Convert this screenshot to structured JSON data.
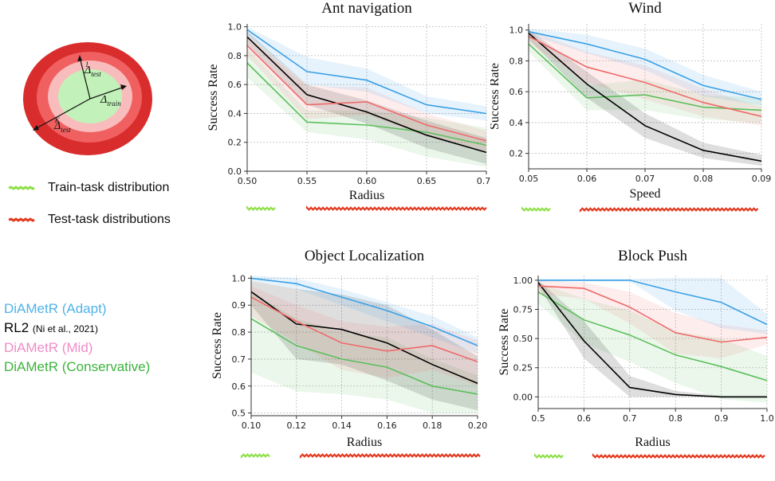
{
  "left_panel": {
    "diagram": {
      "label_train": "Δ",
      "label_train_sub": "train",
      "label_test1": "Δ",
      "label_test1_sub": "test",
      "label_test1_sup": "1",
      "label_testK": "Δ",
      "label_testK_sub": "test",
      "label_testK_sup": "K",
      "colors": {
        "outer": "#d92d2d",
        "ring2": "#f06060",
        "ring3": "#f9bcbc",
        "inner": "#c2f2b9"
      }
    },
    "dist_legend": {
      "train_label": "Train-task distribution",
      "test_label": "Test-task distributions",
      "train_color": "#8fe04a",
      "test_color": "#e23a1f"
    },
    "method_legend": [
      {
        "label": "DiAMetR (Adapt)",
        "note": "",
        "color": "#4fb3e8"
      },
      {
        "label": "RL2",
        "note": "(Ni et al., 2021)",
        "color": "#000000"
      },
      {
        "label": "DiAMetR (Mid)",
        "note": "",
        "color": "#f08cc8"
      },
      {
        "label": "DiAMetR (Conservative)",
        "note": "",
        "color": "#3db33d"
      }
    ]
  },
  "colors": {
    "adapt": "#3aa0e6",
    "rl2": "#000000",
    "mid": "#ef6a6a",
    "conservative": "#5cbf5c"
  },
  "chart_data": [
    {
      "type": "line",
      "title": "Ant navigation",
      "xlabel": "Radius",
      "ylabel": "Success Rate",
      "x": [
        0.5,
        0.55,
        0.6,
        0.65,
        0.7
      ],
      "xticks": [
        "0.50",
        "0.55",
        "0.60",
        "0.65",
        "0.70"
      ],
      "xlim": [
        0.5,
        0.7
      ],
      "yticks": [
        "0.0",
        "0.2",
        "0.4",
        "0.6",
        "0.8",
        "1.0"
      ],
      "ylim": [
        0.0,
        1.02
      ],
      "grid": true,
      "series": [
        {
          "key": "adapt",
          "values": [
            0.98,
            0.69,
            0.63,
            0.46,
            0.4
          ],
          "band": [
            [
              0.95,
              1.0
            ],
            [
              0.6,
              0.79
            ],
            [
              0.55,
              0.71
            ],
            [
              0.4,
              0.52
            ],
            [
              0.35,
              0.45
            ]
          ]
        },
        {
          "key": "mid",
          "values": [
            0.87,
            0.46,
            0.48,
            0.32,
            0.21
          ],
          "band": [
            [
              0.8,
              0.93
            ],
            [
              0.36,
              0.59
            ],
            [
              0.39,
              0.58
            ],
            [
              0.24,
              0.4
            ],
            [
              0.14,
              0.28
            ]
          ]
        },
        {
          "key": "rl2",
          "values": [
            0.93,
            0.53,
            0.41,
            0.25,
            0.13
          ],
          "band": [
            [
              0.88,
              0.97
            ],
            [
              0.46,
              0.6
            ],
            [
              0.33,
              0.49
            ],
            [
              0.16,
              0.35
            ],
            [
              0.05,
              0.23
            ]
          ]
        },
        {
          "key": "conservative",
          "values": [
            0.75,
            0.34,
            0.32,
            0.27,
            0.18
          ],
          "band": [
            [
              0.65,
              0.85
            ],
            [
              0.27,
              0.42
            ],
            [
              0.22,
              0.42
            ],
            [
              0.1,
              0.37
            ],
            [
              0.03,
              0.3
            ]
          ]
        }
      ]
    },
    {
      "type": "line",
      "title": "Wind",
      "xlabel": "Speed",
      "ylabel": "Success Rate",
      "x": [
        0.05,
        0.06,
        0.07,
        0.08,
        0.09
      ],
      "xticks": [
        "0.05",
        "0.06",
        "0.07",
        "0.08",
        "0.09"
      ],
      "xlim": [
        0.05,
        0.09
      ],
      "yticks": [
        "0.2",
        "0.4",
        "0.6",
        "0.8",
        "1.0"
      ],
      "ylim": [
        0.1,
        1.04
      ],
      "grid": true,
      "series": [
        {
          "key": "adapt",
          "values": [
            0.99,
            0.91,
            0.81,
            0.64,
            0.55
          ],
          "band": [
            [
              0.97,
              1.01
            ],
            [
              0.85,
              0.97
            ],
            [
              0.74,
              0.88
            ],
            [
              0.57,
              0.71
            ],
            [
              0.51,
              0.6
            ]
          ]
        },
        {
          "key": "mid",
          "values": [
            0.96,
            0.76,
            0.66,
            0.53,
            0.44
          ],
          "band": [
            [
              0.92,
              1.0
            ],
            [
              0.66,
              0.86
            ],
            [
              0.55,
              0.77
            ],
            [
              0.44,
              0.62
            ],
            [
              0.38,
              0.5
            ]
          ]
        },
        {
          "key": "rl2",
          "values": [
            0.98,
            0.65,
            0.38,
            0.22,
            0.15
          ],
          "band": [
            [
              0.94,
              1.0
            ],
            [
              0.56,
              0.73
            ],
            [
              0.3,
              0.46
            ],
            [
              0.17,
              0.27
            ],
            [
              0.12,
              0.19
            ]
          ]
        },
        {
          "key": "conservative",
          "values": [
            0.91,
            0.56,
            0.58,
            0.5,
            0.48
          ],
          "band": [
            [
              0.86,
              0.96
            ],
            [
              0.48,
              0.64
            ],
            [
              0.48,
              0.68
            ],
            [
              0.42,
              0.58
            ],
            [
              0.4,
              0.56
            ]
          ]
        }
      ]
    },
    {
      "type": "line",
      "title": "Object Localization",
      "xlabel": "Radius",
      "ylabel": "Success Rate",
      "x": [
        0.1,
        0.12,
        0.14,
        0.16,
        0.18,
        0.2
      ],
      "xticks": [
        "0.10",
        "0.12",
        "0.14",
        "0.16",
        "0.18",
        "0.20"
      ],
      "xlim": [
        0.1,
        0.2
      ],
      "yticks": [
        "0.5",
        "0.6",
        "0.7",
        "0.8",
        "0.9",
        "1.0"
      ],
      "ylim": [
        0.49,
        1.01
      ],
      "grid": true,
      "series": [
        {
          "key": "adapt",
          "values": [
            1.0,
            0.98,
            0.93,
            0.88,
            0.82,
            0.75
          ],
          "band": [
            [
              0.99,
              1.01
            ],
            [
              0.96,
              1.0
            ],
            [
              0.9,
              0.96
            ],
            [
              0.84,
              0.91
            ],
            [
              0.78,
              0.86
            ],
            [
              0.72,
              0.78
            ]
          ]
        },
        {
          "key": "mid",
          "values": [
            0.93,
            0.84,
            0.76,
            0.73,
            0.75,
            0.69
          ],
          "band": [
            [
              0.86,
              0.97
            ],
            [
              0.76,
              0.9
            ],
            [
              0.66,
              0.84
            ],
            [
              0.63,
              0.82
            ],
            [
              0.66,
              0.83
            ],
            [
              0.6,
              0.77
            ]
          ]
        },
        {
          "key": "rl2",
          "values": [
            0.95,
            0.83,
            0.81,
            0.76,
            0.68,
            0.61
          ],
          "band": [
            [
              0.9,
              0.99
            ],
            [
              0.7,
              0.96
            ],
            [
              0.68,
              0.94
            ],
            [
              0.62,
              0.9
            ],
            [
              0.55,
              0.81
            ],
            [
              0.51,
              0.71
            ]
          ]
        },
        {
          "key": "conservative",
          "values": [
            0.85,
            0.75,
            0.7,
            0.67,
            0.6,
            0.57
          ],
          "band": [
            [
              0.65,
              0.95
            ],
            [
              0.58,
              0.85
            ],
            [
              0.57,
              0.8
            ],
            [
              0.55,
              0.78
            ],
            [
              0.5,
              0.7
            ],
            [
              0.5,
              0.64
            ]
          ]
        }
      ]
    },
    {
      "type": "line",
      "title": "Block Push",
      "xlabel": "Radius",
      "ylabel": "Success Rate",
      "x": [
        0.5,
        0.6,
        0.7,
        0.8,
        0.9,
        1.0
      ],
      "xticks": [
        "0.5",
        "0.6",
        "0.7",
        "0.8",
        "0.9",
        "1.0"
      ],
      "xlim": [
        0.5,
        1.0
      ],
      "yticks": [
        "0.00",
        "0.25",
        "0.50",
        "0.75",
        "1.00"
      ],
      "ylim": [
        -0.1,
        1.04
      ],
      "grid": true,
      "series": [
        {
          "key": "adapt",
          "values": [
            1.0,
            1.0,
            1.0,
            0.9,
            0.81,
            0.62
          ],
          "band": [
            [
              0.99,
              1.01
            ],
            [
              0.99,
              1.01
            ],
            [
              0.99,
              1.01
            ],
            [
              0.74,
              1.02
            ],
            [
              0.59,
              1.02
            ],
            [
              0.54,
              0.71
            ]
          ]
        },
        {
          "key": "mid",
          "values": [
            0.95,
            0.93,
            0.77,
            0.55,
            0.47,
            0.51
          ],
          "band": [
            [
              0.88,
              1.0
            ],
            [
              0.84,
              0.98
            ],
            [
              0.63,
              0.9
            ],
            [
              0.37,
              0.72
            ],
            [
              0.33,
              0.62
            ],
            [
              0.45,
              0.57
            ]
          ]
        },
        {
          "key": "rl2",
          "values": [
            0.98,
            0.48,
            0.08,
            0.02,
            0.0,
            0.0
          ],
          "band": [
            [
              0.95,
              1.0
            ],
            [
              0.33,
              0.65
            ],
            [
              0.0,
              0.18
            ],
            [
              0.0,
              0.05
            ],
            [
              0.0,
              0.01
            ],
            [
              0.0,
              0.01
            ]
          ]
        },
        {
          "key": "conservative",
          "values": [
            0.9,
            0.66,
            0.53,
            0.36,
            0.26,
            0.14
          ],
          "band": [
            [
              0.8,
              0.98
            ],
            [
              0.46,
              0.84
            ],
            [
              0.3,
              0.74
            ],
            [
              0.12,
              0.56
            ],
            [
              -0.02,
              0.5
            ],
            [
              -0.05,
              0.35
            ]
          ]
        }
      ]
    }
  ]
}
